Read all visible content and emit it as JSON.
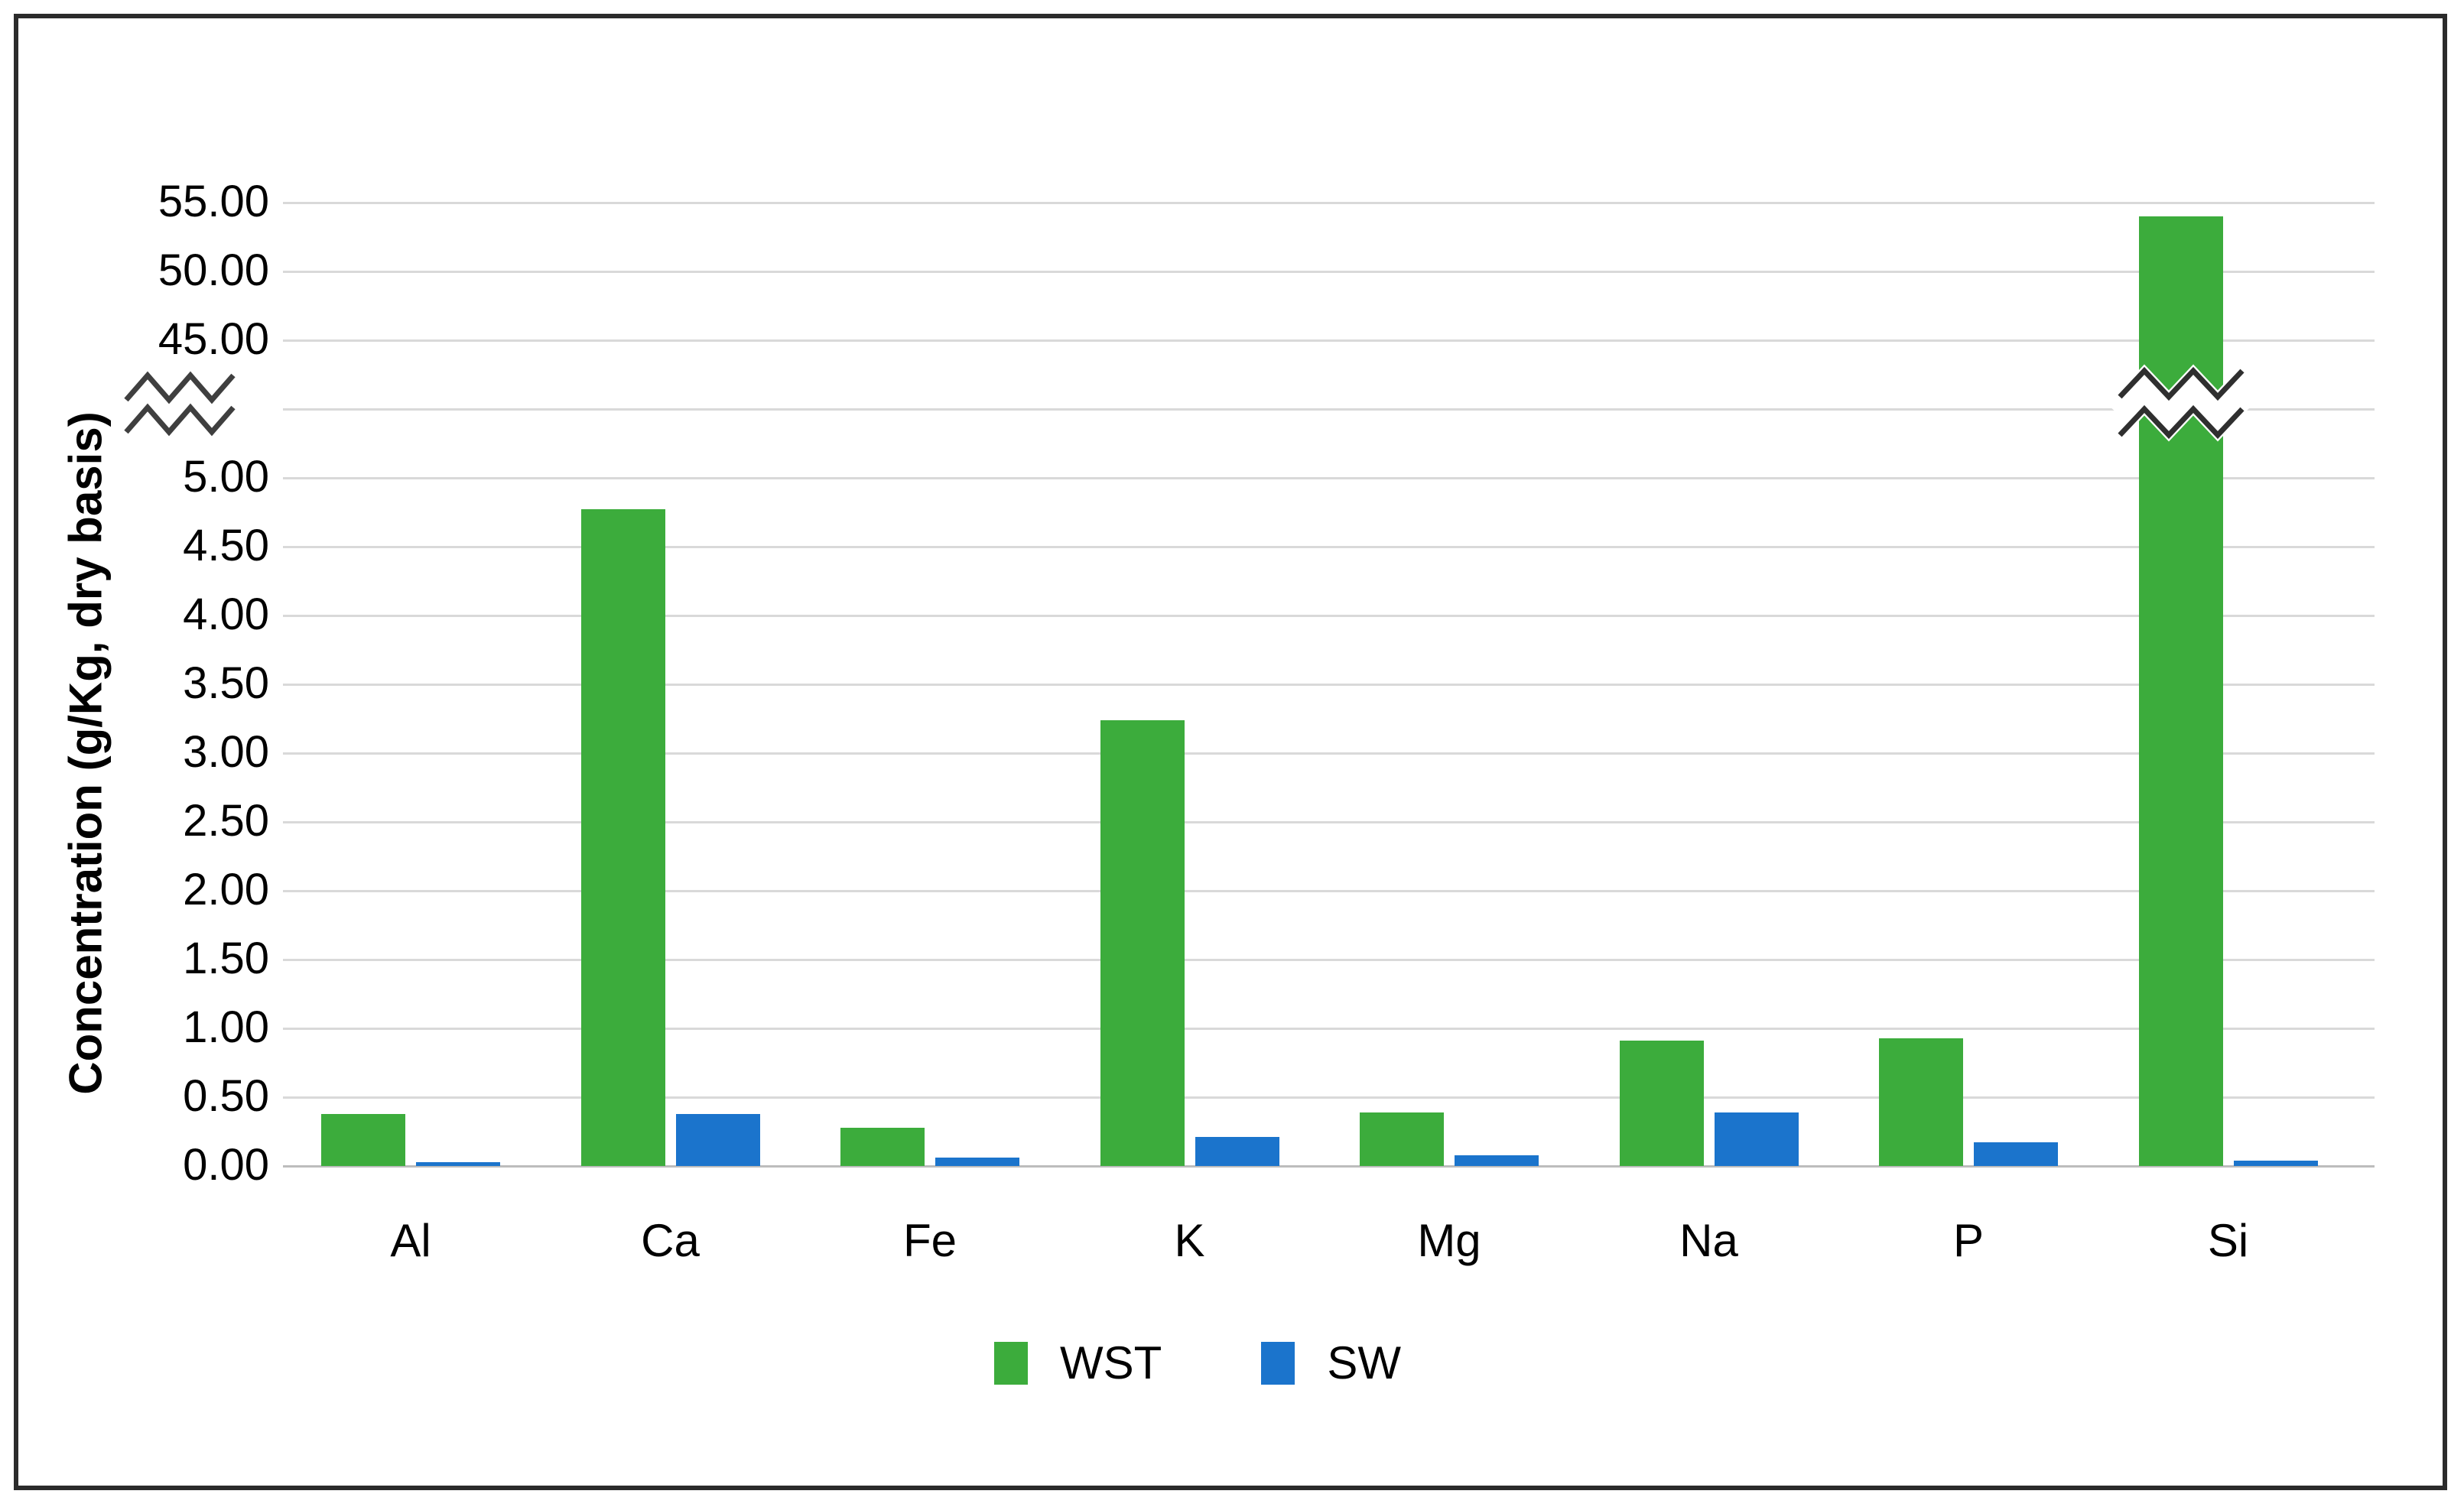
{
  "figure": {
    "background": "#ffffff",
    "border_color": "#2b2b2b"
  },
  "chart_data": {
    "type": "bar",
    "title": "",
    "xlabel": "",
    "ylabel": "Concentration (g/Kg, dry basis)",
    "categories": [
      "Al",
      "Ca",
      "Fe",
      "K",
      "Mg",
      "Na",
      "P",
      "Si"
    ],
    "series": [
      {
        "name": "WST",
        "color": "#3cac3c",
        "values": [
          0.38,
          4.77,
          0.28,
          3.24,
          0.39,
          0.91,
          0.93,
          54.0
        ]
      },
      {
        "name": "SW",
        "color": "#1b74cc",
        "values": [
          0.03,
          0.38,
          0.06,
          0.21,
          0.08,
          0.39,
          0.17,
          0.04
        ]
      }
    ],
    "y_axis": {
      "broken": true,
      "lower_range": [
        0,
        5
      ],
      "lower_tick_step": 0.5,
      "lower_ticks": [
        "0.00",
        "0.50",
        "1.00",
        "1.50",
        "2.00",
        "2.50",
        "3.00",
        "3.50",
        "4.00",
        "4.50",
        "5.00"
      ],
      "upper_range": [
        45,
        55
      ],
      "upper_tick_step": 5,
      "upper_ticks": [
        "45.00",
        "50.00",
        "55.00"
      ],
      "break_between": [
        5,
        45
      ]
    },
    "grid": true,
    "legend_position": "bottom",
    "gridline_color": "#d9d9d9",
    "axis_text_color": "#000000"
  }
}
